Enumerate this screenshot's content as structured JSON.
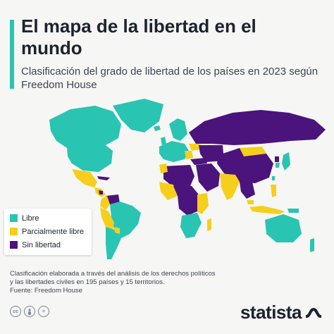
{
  "title": "El mapa de la libertad en el mundo",
  "subtitle": "Clasificación del grado de libertad de los países en 2023 según Freedom House",
  "legend": {
    "items": [
      {
        "label": "Libre",
        "color": "#2ac4b3"
      },
      {
        "label": "Parcialmente libre",
        "color": "#f5cf1b"
      },
      {
        "label": "Sin libertad",
        "color": "#4b137c"
      }
    ]
  },
  "colors": {
    "libre": "#2ac4b3",
    "parcial": "#f5cf1b",
    "sin": "#4b137c"
  },
  "notes": {
    "line1": "Clasificación elaborada a través del análisis de los derechos políticos",
    "line2": "y las libertades civiles en 195 países y 15 territorios.",
    "source": "Fuente: Freedom House"
  },
  "footer": {
    "icons": [
      "cc-icon",
      "person-icon",
      "equals-icon"
    ],
    "brand": "statista"
  }
}
